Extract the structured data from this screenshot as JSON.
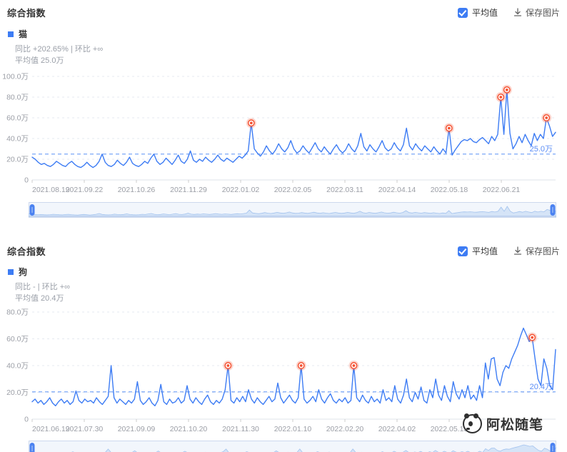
{
  "colors": {
    "line": "#3d7cf4",
    "average_line": "#7aa6f8",
    "average_label": "#5b8df6",
    "marker": "#f55333",
    "accent_blue": "#3d7cf4",
    "brush_fill": "#d5e4f7",
    "grid": "#e6e9f0"
  },
  "icons": {
    "checkbox": "checkbox-checked-icon",
    "save": "download-icon",
    "watermark_logo": "panda-icon"
  },
  "modules": [
    {
      "title": "综合指数",
      "controls": {
        "avg_checkbox_label": "平均值",
        "save_label": "保存图片"
      },
      "legend": {
        "keyword": "猫",
        "stats_line1": "同比 +202.65% | 环比 +∞",
        "stats_line2": "平均值 25.0万"
      }
    },
    {
      "title": "综合指数",
      "controls": {
        "avg_checkbox_label": "平均值",
        "save_label": "保存图片"
      },
      "legend": {
        "keyword": "狗",
        "stats_line1": "同比 - | 环比 +∞",
        "stats_line2": "平均值 20.4万"
      }
    }
  ],
  "watermark": {
    "text": "阿松随笔"
  },
  "chart_data": [
    {
      "type": "line",
      "title": "综合指数",
      "series_name": "猫",
      "unit": "万",
      "ylim": [
        0,
        100
      ],
      "ytick_step": 20,
      "ytick_labels": [
        "0",
        "20.0万",
        "40.0万",
        "60.0万",
        "80.0万",
        "100.0万"
      ],
      "x_tick_labels": [
        "2021.08.19",
        "2021.09.22",
        "2021.10.26",
        "2021.11.29",
        "2022.01.02",
        "2022.02.05",
        "2022.03.11",
        "2022.04.14",
        "2022.05.18",
        "2022.06.21"
      ],
      "grid": "horizontal-dashed",
      "legend_position": "top-left",
      "average": 25.0,
      "average_label": "25.0万",
      "marked_indices": [
        72,
        137,
        154,
        156,
        169
      ],
      "values": [
        22,
        20,
        17,
        15,
        16,
        14,
        13,
        15,
        18,
        16,
        14,
        13,
        16,
        18,
        15,
        13,
        12,
        14,
        17,
        14,
        12,
        14,
        18,
        25,
        17,
        14,
        13,
        15,
        19,
        16,
        14,
        17,
        22,
        16,
        14,
        13,
        15,
        18,
        16,
        21,
        25,
        18,
        15,
        17,
        21,
        18,
        15,
        19,
        24,
        18,
        16,
        20,
        28,
        19,
        17,
        20,
        18,
        22,
        19,
        17,
        20,
        24,
        20,
        18,
        21,
        19,
        17,
        20,
        23,
        21,
        24,
        28,
        55,
        30,
        26,
        23,
        27,
        33,
        28,
        25,
        29,
        35,
        30,
        27,
        31,
        38,
        30,
        26,
        28,
        33,
        29,
        26,
        31,
        36,
        30,
        27,
        32,
        28,
        25,
        30,
        34,
        29,
        26,
        29,
        35,
        30,
        27,
        33,
        45,
        32,
        28,
        34,
        30,
        27,
        32,
        38,
        31,
        28,
        30,
        36,
        31,
        28,
        34,
        50,
        33,
        29,
        35,
        31,
        28,
        33,
        30,
        27,
        32,
        28,
        25,
        30,
        26,
        50,
        24,
        29,
        33,
        37,
        39,
        38,
        40,
        37,
        36,
        39,
        41,
        38,
        35,
        42,
        38,
        44,
        80,
        44,
        87,
        45,
        30,
        35,
        42,
        36,
        44,
        38,
        33,
        45,
        38,
        44,
        40,
        60,
        52,
        42,
        46
      ]
    },
    {
      "type": "line",
      "title": "综合指数",
      "series_name": "狗",
      "unit": "万",
      "ylim": [
        0,
        80
      ],
      "ytick_step": 20,
      "ytick_labels": [
        "0",
        "20.0万",
        "40.0万",
        "60.0万",
        "80.0万"
      ],
      "x_tick_labels": [
        "2021.06.19",
        "2021.07.30",
        "2021.09.09",
        "2021.10.20",
        "2021.11.30",
        "2022.01.10",
        "2022.02.20",
        "2022.04.02",
        "2022.05.13"
      ],
      "grid": "horizontal-dashed",
      "legend_position": "top-left",
      "average": 20.4,
      "average_label": "20.4万",
      "marked_indices": [
        67,
        92,
        110,
        171
      ],
      "values": [
        13,
        15,
        12,
        14,
        11,
        13,
        16,
        12,
        10,
        13,
        15,
        12,
        14,
        11,
        13,
        21,
        14,
        12,
        15,
        13,
        14,
        12,
        16,
        13,
        11,
        14,
        17,
        40,
        16,
        12,
        15,
        13,
        11,
        14,
        12,
        15,
        28,
        14,
        11,
        13,
        16,
        12,
        10,
        14,
        26,
        13,
        11,
        15,
        12,
        13,
        16,
        12,
        14,
        25,
        15,
        12,
        16,
        13,
        11,
        15,
        18,
        13,
        11,
        14,
        12,
        15,
        22,
        40,
        14,
        12,
        16,
        13,
        17,
        13,
        22,
        15,
        12,
        16,
        13,
        11,
        14,
        17,
        13,
        15,
        27,
        16,
        12,
        15,
        18,
        14,
        12,
        16,
        40,
        15,
        12,
        14,
        17,
        13,
        22,
        15,
        12,
        16,
        19,
        14,
        12,
        15,
        13,
        16,
        12,
        14,
        40,
        16,
        13,
        18,
        14,
        12,
        17,
        13,
        15,
        12,
        22,
        14,
        16,
        13,
        25,
        15,
        12,
        18,
        30,
        16,
        13,
        20,
        15,
        24,
        14,
        12,
        22,
        16,
        30,
        18,
        14,
        25,
        17,
        13,
        28,
        19,
        15,
        22,
        16,
        25,
        15,
        18,
        14,
        25,
        16,
        42,
        30,
        45,
        46,
        30,
        25,
        35,
        40,
        38,
        45,
        50,
        55,
        62,
        68,
        63,
        58,
        61,
        45,
        30,
        25,
        45,
        38,
        25,
        22,
        52
      ]
    }
  ]
}
